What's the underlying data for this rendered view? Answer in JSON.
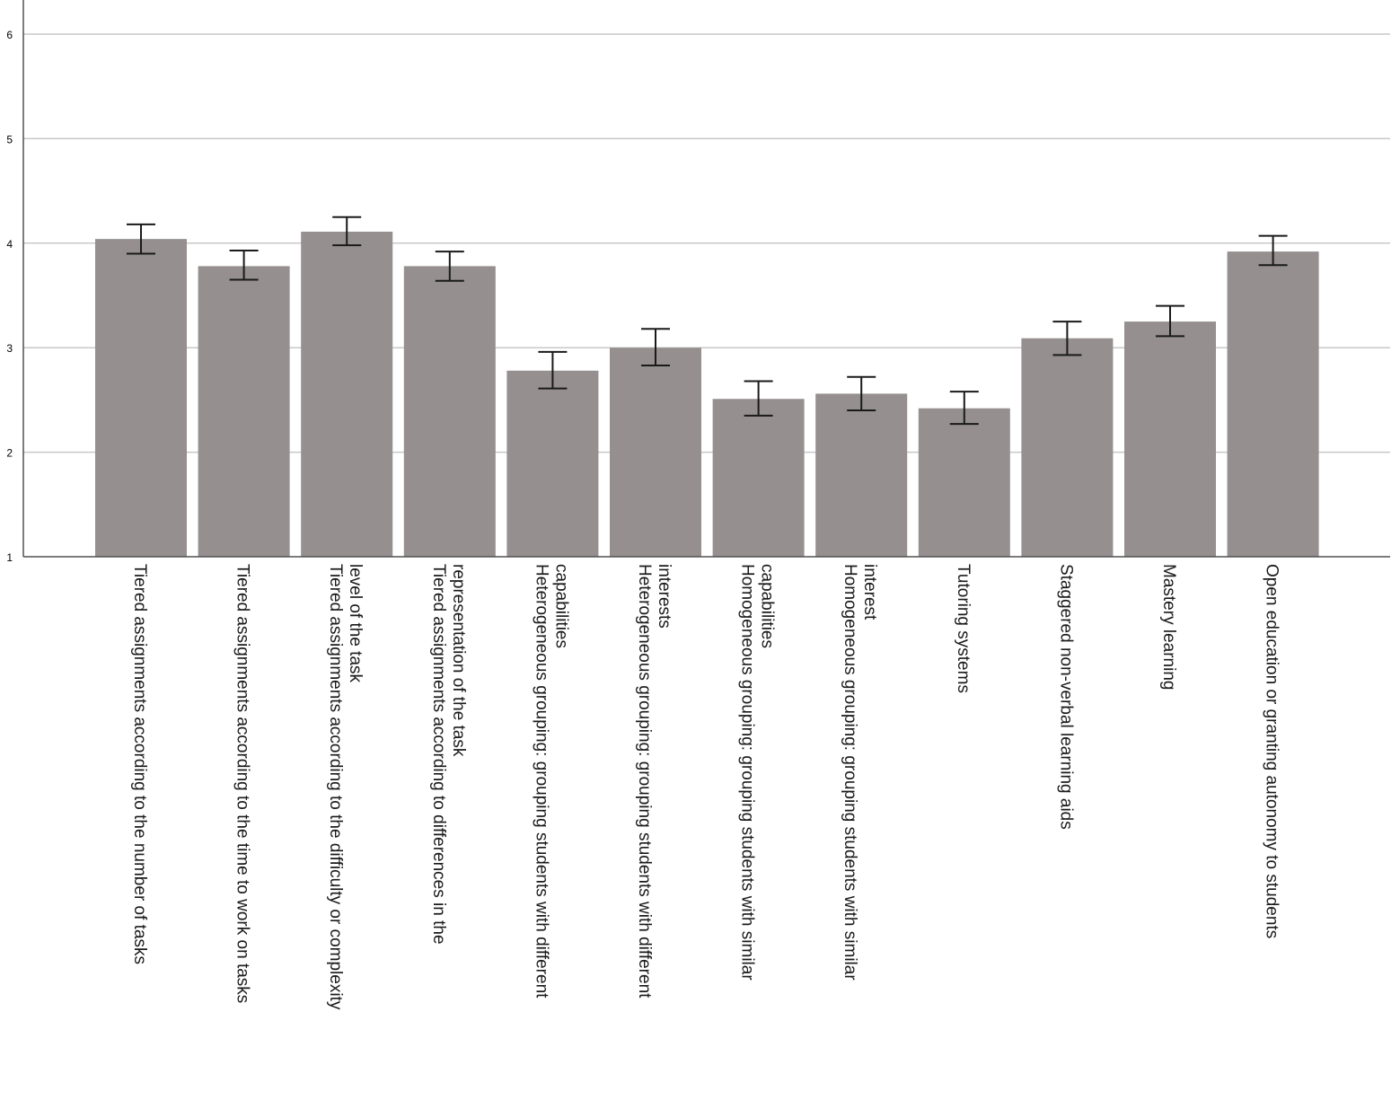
{
  "chart_data": {
    "type": "bar",
    "categories": [
      "Tiered assignments according to the number of tasks",
      "Tiered assignments according to the time to work on tasks",
      "Tiered assignments according to the difficulty or complexity level of the task",
      "Tiered assignments according to differences in the representation of the task",
      "Heterogeneous grouping: grouping students with different capabilities",
      "Heterogeneous grouping: grouping students with different interests",
      "Homogeneous grouping: grouping students with similar capabilities",
      "Homogeneous grouping: grouping students with similar interest",
      "Tutoring systems",
      "Staggered non-verbal learning aids",
      "Mastery learning",
      "Open education or granting autonomy to students"
    ],
    "label_lines": [
      [
        "Tiered assignments according to the number of tasks"
      ],
      [
        "Tiered assignments according to the time to work on tasks"
      ],
      [
        "Tiered assignments according to the difficulty or complexity",
        "level of the task"
      ],
      [
        "Tiered assignments according to differences in the",
        "representation of the task"
      ],
      [
        "Heterogeneous grouping: grouping students with different",
        "capabilities"
      ],
      [
        "Heterogeneous grouping: grouping students with different",
        "interests"
      ],
      [
        "Homogeneous grouping: grouping students with similar",
        "capabilities"
      ],
      [
        "Homogeneous grouping: grouping students with similar",
        "interest"
      ],
      [
        "Tutoring systems"
      ],
      [
        "Staggered non-verbal learning aids"
      ],
      [
        "Mastery learning"
      ],
      [
        "Open education or granting autonomy to students"
      ]
    ],
    "values": [
      4.04,
      3.78,
      4.11,
      3.78,
      2.78,
      3.0,
      2.51,
      2.56,
      2.42,
      3.09,
      3.25,
      3.92
    ],
    "error_low": [
      3.9,
      3.65,
      3.98,
      3.64,
      2.61,
      2.83,
      2.35,
      2.4,
      2.27,
      2.93,
      3.11,
      3.79
    ],
    "error_high": [
      4.18,
      3.93,
      4.25,
      3.92,
      2.96,
      3.18,
      2.68,
      2.72,
      2.58,
      3.25,
      3.4,
      4.07
    ],
    "ylim": [
      1,
      6
    ],
    "yticks": [
      "1",
      "2",
      "3",
      "4",
      "5",
      "6"
    ],
    "grid": true,
    "colors": {
      "bar": "#958f8f",
      "grid": "#c8c8c8",
      "axis": "#505050",
      "errorbar": "#1a1a1a"
    }
  }
}
